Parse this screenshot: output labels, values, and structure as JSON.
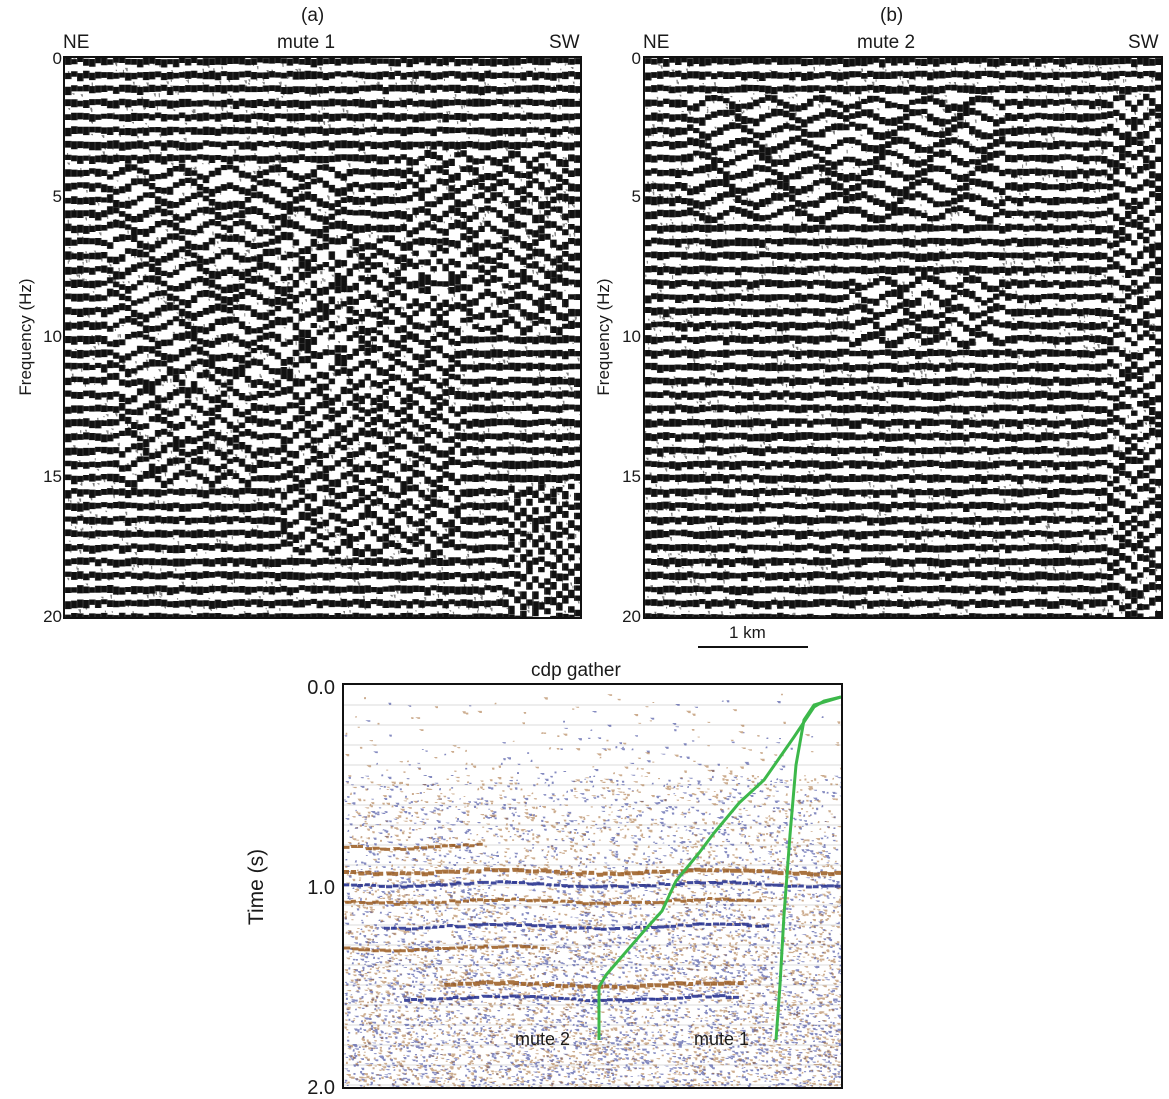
{
  "panel_a": {
    "letter": "(a)",
    "left_label": "NE",
    "title": "mute 1",
    "right_label": "SW",
    "ylabel": "Frequency (Hz)",
    "yticks": [
      "0",
      "5",
      "10",
      "15",
      "20"
    ]
  },
  "panel_b": {
    "letter": "(b)",
    "left_label": "NE",
    "title": "mute 2",
    "right_label": "SW",
    "ylabel": "Frequency (Hz)",
    "yticks": [
      "0",
      "5",
      "10",
      "15",
      "20"
    ]
  },
  "scale_bar": {
    "label": "1 km"
  },
  "panel_c": {
    "title": "cdp gather",
    "ylabel": "Time (s)",
    "yticks": [
      "0.0",
      "1.0",
      "2.0"
    ],
    "mute_labels": [
      "mute 2",
      "mute 1"
    ],
    "mute_color": "#3cb84a"
  },
  "colors": {
    "frame": "#111111",
    "seismic_dark": "#111111",
    "seismic_blue": "#1f2a8c",
    "seismic_brown": "#9a5a1e"
  }
}
